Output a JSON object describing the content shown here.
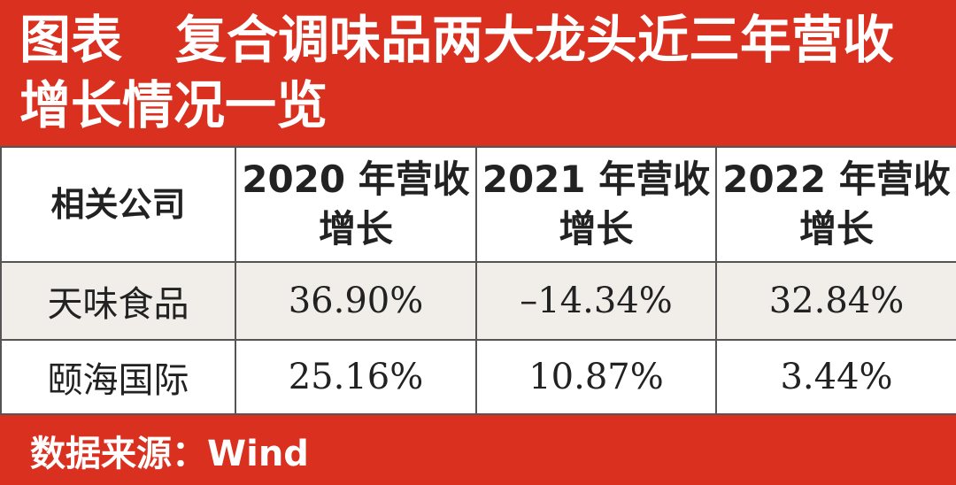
{
  "header": {
    "label": "图表",
    "title": "复合调味品两大龙头近三年营收增长情况一览"
  },
  "table": {
    "columns": [
      "相关公司",
      "2020 年营收增长",
      "2021 年营收增长",
      "2022 年营收增长"
    ],
    "rows": [
      [
        "天味食品",
        "36.90%",
        "–14.34%",
        "32.84%"
      ],
      [
        "颐海国际",
        "25.16%",
        "10.87%",
        "3.44%"
      ]
    ]
  },
  "footer": {
    "source": "数据来源：Wind"
  }
}
